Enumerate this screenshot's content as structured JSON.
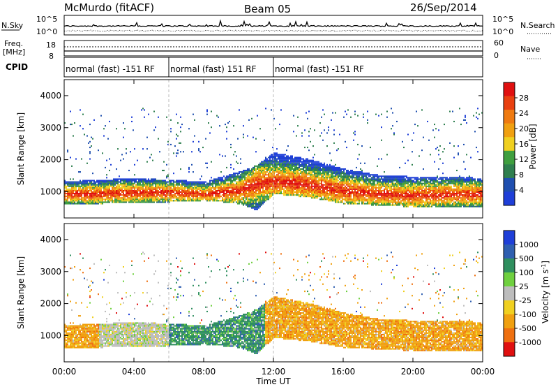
{
  "header": {
    "station": "McMurdo (fitACF)",
    "beam": "Beam 05",
    "date": "26/Sep/2014"
  },
  "top_strip": {
    "nsky_label": "N.Sky",
    "nsearch_label": "N.Search",
    "left_top_tick": "10^5",
    "left_bottom_tick": "10^0",
    "right_top_tick": "10^5",
    "right_bottom_tick": "10^0",
    "freq_label_1": "Freq.",
    "freq_label_2": "[MHz]",
    "freq_top_tick": "18",
    "freq_bottom_tick": "8",
    "nave_label": "Nave",
    "nave_top_tick": "60",
    "nave_bottom_tick": "0",
    "cpid_label": "CPID",
    "cpid_segments": [
      {
        "text": "normal (fast) -151 RF",
        "start_hour": 0,
        "end_hour": 6
      },
      {
        "text": "normal (fast) 151 RF",
        "start_hour": 6,
        "end_hour": 12
      },
      {
        "text": "normal (fast) -151 RF",
        "start_hour": 12,
        "end_hour": 24
      }
    ]
  },
  "colors": {
    "power": [
      "#1f3fd8",
      "#1f4faf",
      "#2f7f4f",
      "#3f9f3f",
      "#f0d020",
      "#f0a010",
      "#ef7a10",
      "#e94010",
      "#e01010"
    ],
    "velocity": [
      "#1f3fd8",
      "#2f5fb0",
      "#2f8f5f",
      "#6fd03f",
      "#bdbdbd",
      "#f0d020",
      "#f0a010",
      "#ef7010",
      "#e01010"
    ]
  },
  "chart_data": [
    {
      "type": "heatmap",
      "name": "power-panel",
      "ylabel": "Slant Range [km]",
      "xlabel": "",
      "x_ticks": [
        "00:00",
        "04:00",
        "08:00",
        "12:00",
        "16:00",
        "20:00",
        "00:00"
      ],
      "y_ticks": [
        1000,
        2000,
        3000,
        4000
      ],
      "xlim_hours": [
        0,
        24
      ],
      "ylim_km": [
        180,
        4500
      ],
      "colorbar": {
        "label": "Power [dB]",
        "ticks": [
          "4",
          "8",
          "12",
          "16",
          "20",
          "24",
          "28"
        ],
        "range": [
          0,
          30
        ]
      },
      "echo_band": [
        {
          "hour": 0,
          "lower_km": 600,
          "upper_km": 1300,
          "peak_km": 900
        },
        {
          "hour": 2,
          "lower_km": 600,
          "upper_km": 1350,
          "peak_km": 900
        },
        {
          "hour": 4,
          "lower_km": 650,
          "upper_km": 1400,
          "peak_km": 950
        },
        {
          "hour": 6,
          "lower_km": 650,
          "upper_km": 1350,
          "peak_km": 950
        },
        {
          "hour": 8,
          "lower_km": 700,
          "upper_km": 1300,
          "peak_km": 900
        },
        {
          "hour": 10,
          "lower_km": 600,
          "upper_km": 1600,
          "peak_km": 1000
        },
        {
          "hour": 11,
          "lower_km": 400,
          "upper_km": 1800,
          "peak_km": 1200
        },
        {
          "hour": 12,
          "lower_km": 900,
          "upper_km": 2200,
          "peak_km": 1300
        },
        {
          "hour": 14,
          "lower_km": 800,
          "upper_km": 2000,
          "peak_km": 1200
        },
        {
          "hour": 16,
          "lower_km": 600,
          "upper_km": 1700,
          "peak_km": 1000
        },
        {
          "hour": 18,
          "lower_km": 550,
          "upper_km": 1500,
          "peak_km": 900
        },
        {
          "hour": 20,
          "lower_km": 500,
          "upper_km": 1450,
          "peak_km": 850
        },
        {
          "hour": 22,
          "lower_km": 500,
          "upper_km": 1450,
          "peak_km": 900
        },
        {
          "hour": 24,
          "lower_km": 500,
          "upper_km": 1400,
          "peak_km": 900
        }
      ]
    },
    {
      "type": "heatmap",
      "name": "velocity-panel",
      "ylabel": "Slant Range [km]",
      "xlabel": "Time UT",
      "x_ticks": [
        "00:00",
        "04:00",
        "08:00",
        "12:00",
        "16:00",
        "20:00",
        "00:00"
      ],
      "y_ticks": [
        1000,
        2000,
        3000,
        4000
      ],
      "xlim_hours": [
        0,
        24
      ],
      "ylim_km": [
        180,
        4500
      ],
      "colorbar": {
        "label": "Velocity [m s^-1]",
        "ticks": [
          "1000",
          "500",
          "100",
          "25",
          "-25",
          "-100",
          "-500",
          "-1000"
        ]
      },
      "dominant_velocity": [
        {
          "start_hour": 0,
          "end_hour": 2,
          "class": "-100"
        },
        {
          "start_hour": 2,
          "end_hour": 6,
          "class": "-25"
        },
        {
          "start_hour": 6,
          "end_hour": 11.5,
          "class": "100"
        },
        {
          "start_hour": 11.5,
          "end_hour": 18,
          "class": "-100"
        },
        {
          "start_hour": 18,
          "end_hour": 24,
          "class": "-100"
        }
      ]
    }
  ]
}
